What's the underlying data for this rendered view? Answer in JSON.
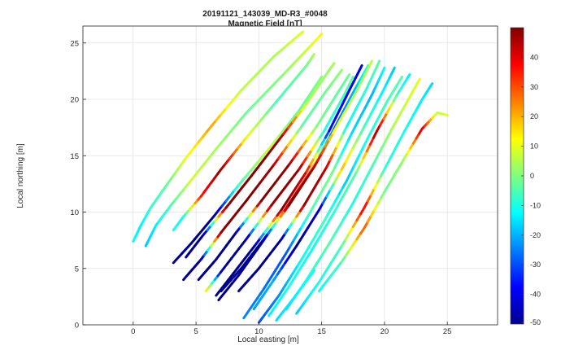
{
  "chart_data": {
    "type": "line",
    "title": "20191121_143039_MD-R3_#0048",
    "subtitle": "Magnetic Field [nT]",
    "xlabel": "Local easting [m]",
    "ylabel": "Local northing [m]",
    "xlim": [
      -4,
      29
    ],
    "ylim": [
      0,
      26.5
    ],
    "xticks": [
      0,
      5,
      10,
      15,
      20,
      25
    ],
    "yticks": [
      0,
      5,
      10,
      15,
      20,
      25
    ],
    "grid": true,
    "colorbar": {
      "label": "Magnetic Field [nT]",
      "colormap": "jet",
      "limits": [
        -50,
        50
      ],
      "ticks": [
        -50,
        -40,
        -30,
        -20,
        -10,
        0,
        10,
        20,
        30,
        40
      ]
    },
    "series": [
      {
        "x": [
          0,
          0.6,
          1.4,
          2.6,
          4.2,
          6.2,
          8.6,
          11.2,
          13.5
        ],
        "y": [
          7.4,
          8.8,
          10.4,
          12.3,
          14.8,
          17.6,
          20.8,
          23.8,
          26.0
        ],
        "field": [
          -12,
          -14,
          -8,
          -4,
          10,
          22,
          6,
          4,
          10
        ]
      },
      {
        "x": [
          1.0,
          1.8,
          3.0,
          4.6,
          6.6,
          9.0,
          11.6,
          14.0,
          15.0
        ],
        "y": [
          7.0,
          8.8,
          10.6,
          12.8,
          15.6,
          18.8,
          21.8,
          24.6,
          25.8
        ],
        "field": [
          -18,
          -14,
          -6,
          8,
          4,
          -2,
          0,
          8,
          14
        ]
      },
      {
        "x": [
          3.2,
          4.0,
          5.4,
          7.0,
          9.0,
          11.4,
          13.8,
          14.4
        ],
        "y": [
          8.4,
          9.6,
          11.4,
          13.8,
          16.6,
          19.8,
          23.0,
          24.0
        ],
        "field": [
          -10,
          -12,
          34,
          48,
          12,
          -6,
          -2,
          4
        ]
      },
      {
        "x": [
          3.2,
          4.6,
          6.4,
          8.4,
          10.8,
          13.2,
          15.0
        ],
        "y": [
          5.5,
          7.2,
          9.6,
          12.4,
          15.6,
          19.0,
          22.0
        ],
        "field": [
          -48,
          -50,
          -50,
          -6,
          8,
          -4,
          0
        ]
      },
      {
        "x": [
          4.2,
          5.6,
          7.4,
          9.4,
          11.6,
          13.8,
          15.6,
          16.0
        ],
        "y": [
          6.0,
          8.0,
          10.4,
          13.2,
          16.4,
          19.6,
          22.6,
          23.2
        ],
        "field": [
          -50,
          -50,
          48,
          50,
          48,
          6,
          2,
          4
        ]
      },
      {
        "x": [
          4.0,
          5.4,
          7.0,
          9.0,
          11.2,
          13.4,
          15.4,
          16.6
        ],
        "y": [
          4.0,
          5.8,
          8.2,
          11.0,
          14.2,
          17.6,
          20.8,
          22.6
        ],
        "field": [
          -50,
          -50,
          48,
          50,
          46,
          -4,
          -2,
          2
        ]
      },
      {
        "x": [
          5.2,
          6.6,
          8.2,
          10.2,
          12.4,
          14.6,
          16.4,
          17.2
        ],
        "y": [
          4.0,
          5.8,
          8.2,
          11.0,
          14.2,
          17.6,
          20.8,
          22.2
        ],
        "field": [
          -50,
          -50,
          -50,
          50,
          48,
          0,
          -4,
          -2
        ]
      },
      {
        "x": [
          5.8,
          7.2,
          9.0,
          11.0,
          13.2,
          15.2,
          16.8,
          17.5
        ],
        "y": [
          3.0,
          5.0,
          7.6,
          10.6,
          13.8,
          17.2,
          20.4,
          22.0
        ],
        "field": [
          20,
          -50,
          -50,
          48,
          48,
          -10,
          -6,
          -2
        ]
      },
      {
        "x": [
          6.6,
          8.0,
          9.8,
          11.8,
          13.8,
          15.6,
          17.2,
          18.2
        ],
        "y": [
          2.6,
          4.6,
          7.2,
          10.2,
          13.6,
          17.2,
          20.8,
          23.0
        ],
        "field": [
          -50,
          -50,
          -48,
          50,
          40,
          -36,
          -38,
          -40
        ]
      },
      {
        "x": [
          6.8,
          8.4,
          10.2,
          12.2,
          14.2,
          16.0,
          17.6,
          18.7
        ],
        "y": [
          2.2,
          4.4,
          7.2,
          10.4,
          13.8,
          17.4,
          20.8,
          23.0
        ],
        "field": [
          -50,
          -50,
          -50,
          48,
          24,
          -30,
          -20,
          -10
        ]
      },
      {
        "x": [
          7.0,
          8.6,
          10.4,
          12.4,
          14.4,
          16.2,
          17.9,
          19.0
        ],
        "y": [
          3.0,
          5.0,
          7.6,
          10.6,
          14.0,
          17.6,
          21.0,
          23.4
        ],
        "field": [
          -50,
          -50,
          -50,
          50,
          46,
          10,
          2,
          6
        ]
      },
      {
        "x": [
          8.4,
          10.0,
          11.8,
          13.6,
          15.4,
          17.0,
          18.6,
          19.6
        ],
        "y": [
          3.0,
          5.0,
          7.6,
          10.6,
          14.0,
          17.6,
          21.0,
          23.4
        ],
        "field": [
          -50,
          -50,
          -50,
          48,
          44,
          -12,
          -8,
          -4
        ]
      },
      {
        "x": [
          8.8,
          10.4,
          12.2,
          14.0,
          15.8,
          17.4,
          19.0,
          20.0
        ],
        "y": [
          0.6,
          3.2,
          6.4,
          9.8,
          13.4,
          17.0,
          20.4,
          22.8
        ],
        "field": [
          -24,
          -26,
          -30,
          -6,
          0,
          -16,
          -20,
          -12
        ]
      },
      {
        "x": [
          9.6,
          11.2,
          13.0,
          14.8,
          16.6,
          18.4,
          20.0,
          20.8
        ],
        "y": [
          1.4,
          4.0,
          7.0,
          10.2,
          13.8,
          17.6,
          21.0,
          22.8
        ],
        "field": [
          -22,
          -20,
          -50,
          -44,
          20,
          -6,
          -14,
          -18
        ]
      },
      {
        "x": [
          10.0,
          11.6,
          13.4,
          15.2,
          17.0,
          18.6,
          20.2,
          21.4
        ],
        "y": [
          0.2,
          2.6,
          5.8,
          9.2,
          12.8,
          16.4,
          19.8,
          22.0
        ],
        "field": [
          -30,
          -24,
          -12,
          -6,
          -18,
          -10,
          -6,
          -4
        ]
      },
      {
        "x": [
          10.8,
          12.4,
          14.2,
          16.0,
          17.8,
          19.4,
          21.0,
          22.0
        ],
        "y": [
          0.8,
          3.4,
          6.6,
          10.0,
          13.6,
          17.2,
          20.4,
          22.2
        ],
        "field": [
          -14,
          -10,
          -12,
          -8,
          -4,
          48,
          -6,
          -14
        ]
      },
      {
        "x": [
          12.2,
          13.8,
          15.6,
          17.4,
          19.0,
          20.6,
          22.0,
          22.8
        ],
        "y": [
          1.4,
          4.0,
          7.2,
          10.6,
          14.0,
          17.4,
          20.2,
          21.8
        ],
        "field": [
          -16,
          -10,
          -4,
          -10,
          -6,
          4,
          8,
          10
        ]
      },
      {
        "x": [
          13.0,
          14.8,
          16.6,
          18.4,
          20.0,
          21.6,
          23.0,
          23.8
        ],
        "y": [
          1.0,
          3.8,
          7.0,
          10.4,
          13.8,
          17.2,
          20.0,
          21.4
        ],
        "field": [
          -18,
          -10,
          -6,
          40,
          -8,
          -10,
          -14,
          -16
        ]
      },
      {
        "x": [
          14.8,
          16.6,
          18.4,
          20.0,
          21.6,
          23.0,
          24.2,
          25.0
        ],
        "y": [
          3.0,
          5.6,
          8.6,
          11.8,
          14.8,
          17.4,
          18.8,
          18.6
        ],
        "field": [
          -12,
          -6,
          30,
          -2,
          2,
          42,
          6,
          10
        ]
      },
      {
        "x": [
          11.4,
          12.8,
          14.4
        ],
        "y": [
          0.4,
          2.4,
          4.8
        ],
        "field": [
          -16,
          -14,
          -10
        ]
      }
    ]
  }
}
